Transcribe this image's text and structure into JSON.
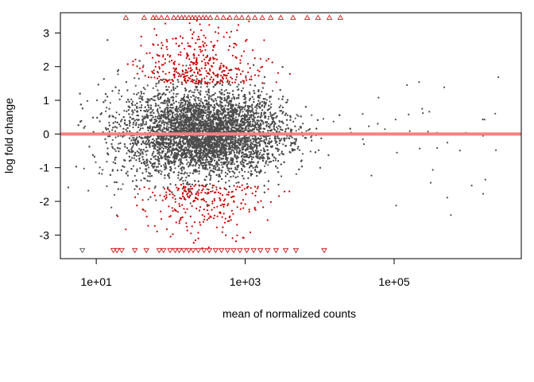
{
  "chart_data": {
    "type": "scatter",
    "title": "",
    "xlabel": "mean of normalized counts",
    "ylabel": "log fold change",
    "x_scale": "log10",
    "xlim": [
      3.3,
      5100000
    ],
    "ylim": [
      -3.7,
      3.6
    ],
    "x_ticks": [
      {
        "value": 10,
        "label": "1e+01"
      },
      {
        "value": 1000,
        "label": "1e+03"
      },
      {
        "value": 100000,
        "label": "1e+05"
      }
    ],
    "y_ticks": [
      {
        "value": -3,
        "label": "-3"
      },
      {
        "value": -2,
        "label": "-2"
      },
      {
        "value": -1,
        "label": "-1"
      },
      {
        "value": 0,
        "label": "0"
      },
      {
        "value": 1,
        "label": "1"
      },
      {
        "value": 2,
        "label": "2"
      },
      {
        "value": 3,
        "label": "3"
      }
    ],
    "reference_line": {
      "y": 0,
      "color": "#ff8080"
    },
    "grid": false,
    "legend": "none",
    "colors": {
      "not_significant": "#4d4d4d",
      "significant": "#cc0000",
      "reference": "#ff7f7f",
      "axis": "#000000"
    },
    "out_of_range_markers": {
      "upper_y": 3.45,
      "lower_y": -3.45,
      "upper_x": [
        25,
        44,
        58,
        64,
        75,
        90,
        110,
        125,
        140,
        155,
        175,
        195,
        215,
        240,
        270,
        300,
        340,
        420,
        510,
        620,
        760,
        900,
        1100,
        1350,
        1700,
        2200,
        3000,
        4400,
        6800,
        9500,
        13500,
        19000
      ],
      "lower_x": [
        6.5,
        17,
        19,
        22,
        33,
        47,
        70,
        80,
        98,
        115,
        130,
        150,
        175,
        200,
        235,
        280,
        330,
        400,
        480,
        580,
        700,
        850,
        1050,
        1300,
        1600,
        2000,
        2600,
        3500,
        4800,
        11500
      ],
      "lower_grey_x": [
        6.5
      ]
    },
    "series": [
      {
        "name": "",
        "color": "#4d4d4d",
        "n_points": 9000,
        "x_center_log10": 2.45,
        "x_spread_log10": 0.55,
        "y_spread": 0.62
      },
      {
        "name": "",
        "color": "#cc0000",
        "n_points": 650
      }
    ]
  }
}
